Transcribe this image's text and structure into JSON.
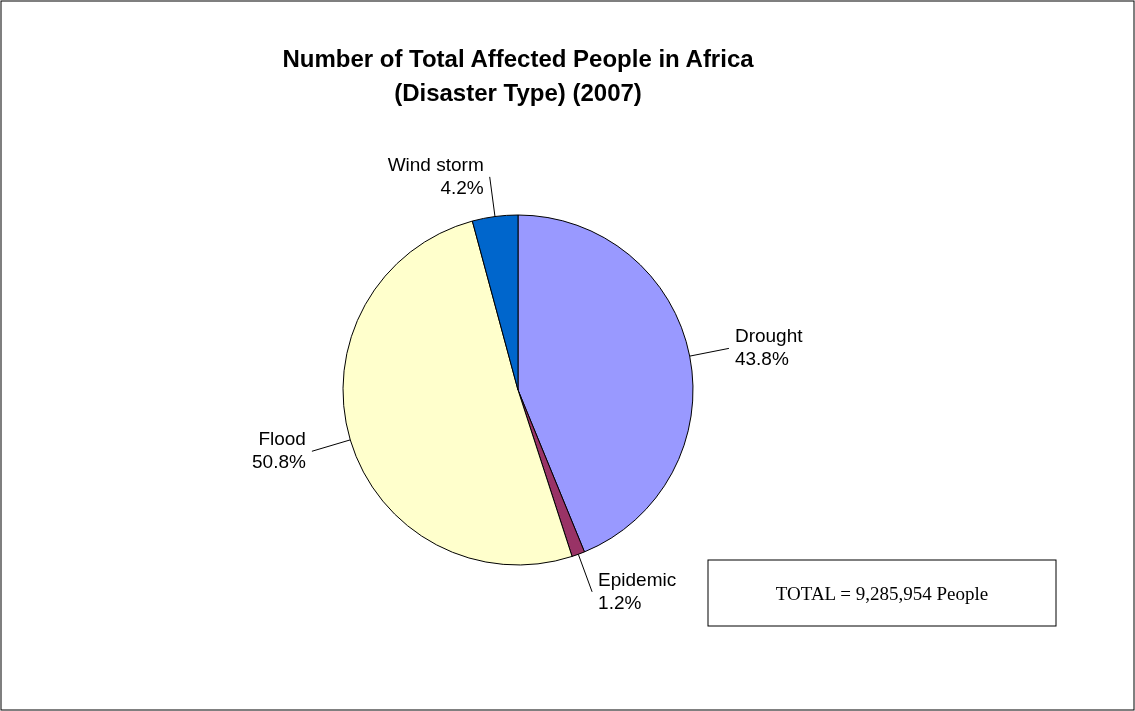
{
  "chart_data": {
    "type": "pie",
    "title": "Number of Total Affected People in Africa\n(Disaster Type) (2007)",
    "categories": [
      "Drought",
      "Epidemic",
      "Flood",
      "Wind storm"
    ],
    "values": [
      43.8,
      1.2,
      50.8,
      4.2
    ],
    "colors": [
      "#9999ff",
      "#993366",
      "#ffffcc",
      "#0066cc"
    ],
    "value_labels": [
      "43.8%",
      "1.2%",
      "50.8%",
      "4.2%"
    ],
    "annotations": [
      "TOTAL = 9,285,954 People"
    ]
  }
}
